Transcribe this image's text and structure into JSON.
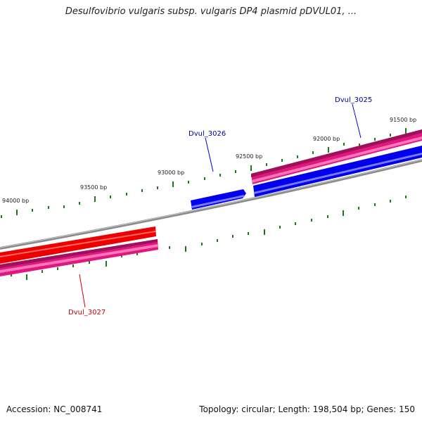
{
  "title": "Desulfovibrio vulgaris subsp. vulgaris DP4 plasmid pDVUL01, ...",
  "footer": {
    "accession": "Accession: NC_008741",
    "stats": "Topology: circular; Length: 198,504 bp; Genes: 150"
  },
  "ruler_labels": [
    "94000 bp",
    "93500 bp",
    "93000 bp",
    "92500 bp",
    "92000 bp",
    "91500 bp"
  ],
  "genes": [
    {
      "name": "Dvul_3025",
      "color": "#000099"
    },
    {
      "name": "Dvul_3026",
      "color": "#000099"
    },
    {
      "name": "Dvul_3027",
      "color": "#cc0000"
    }
  ],
  "colors": {
    "backbone": "#808080",
    "cds_blue": "#0000ee",
    "cds_red": "#ee0000",
    "gene_pink": "#ee1a88",
    "tick_green": "#1a7a1a"
  }
}
